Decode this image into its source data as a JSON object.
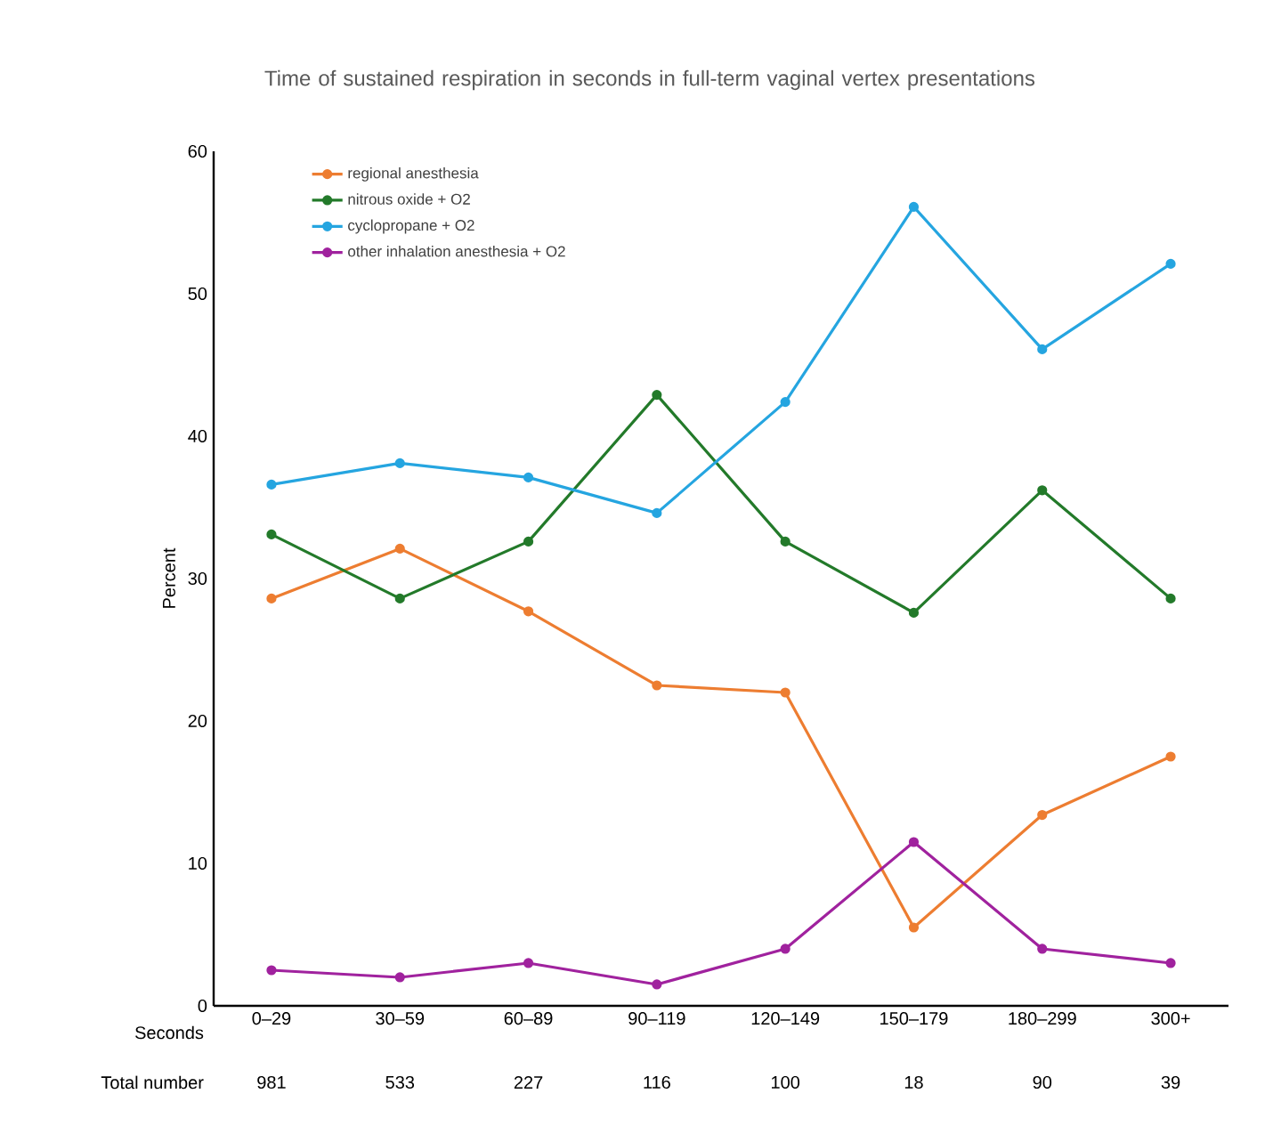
{
  "chart_data": {
    "type": "line",
    "title": "Time of sustained respiration in seconds in full-term vaginal vertex presentations",
    "ylabel": "Percent",
    "categories": [
      "0–29",
      "30–59",
      "60–89",
      "90–119",
      "120–149",
      "150–179",
      "180–299",
      "300+"
    ],
    "series": [
      {
        "name": "regional anesthesia",
        "color": "#ed7d31",
        "values": [
          28.6,
          32.1,
          27.7,
          22.5,
          22,
          5.5,
          13.4,
          17.5
        ]
      },
      {
        "name": "nitrous oxide + O2",
        "color": "#237a2a",
        "values": [
          33.1,
          28.6,
          32.6,
          42.9,
          32.6,
          27.6,
          36.2,
          28.6
        ]
      },
      {
        "name": "cyclopropane + O2",
        "color": "#25a5e0",
        "values": [
          36.6,
          38.1,
          37.1,
          34.6,
          42.4,
          56.1,
          46.1,
          52.1
        ]
      },
      {
        "name": "other inhalation anesthesia + O2",
        "color": "#a0229e",
        "values": [
          2.5,
          2,
          3,
          1.5,
          4,
          11.5,
          4,
          3
        ]
      }
    ],
    "ylim": [
      0,
      60
    ],
    "yticks": [
      0,
      10,
      20,
      30,
      40,
      50,
      60
    ],
    "grid": false,
    "legend": "top left",
    "marker": "circle",
    "line_style": "solid",
    "annotations": [
      "Seconds",
      "Total number",
      "981",
      "533",
      "227",
      "116",
      "100",
      "18",
      "90",
      "39"
    ]
  }
}
